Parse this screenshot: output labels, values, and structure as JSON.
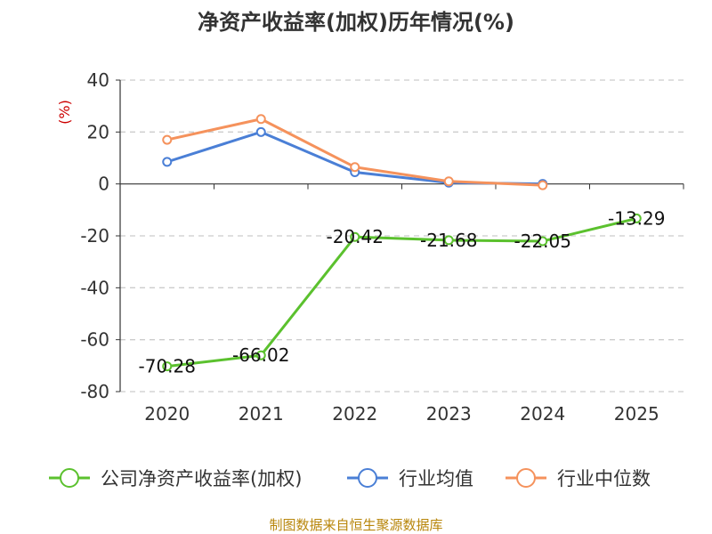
{
  "chart_data": {
    "type": "line",
    "title": "净资产收益率(加权)历年情况(%)",
    "ylabel": "(%)",
    "xlabel": "",
    "categories": [
      "2020",
      "2021",
      "2022",
      "2023",
      "2024",
      "2025"
    ],
    "ylim": [
      -80,
      40
    ],
    "yticks": [
      "40",
      "20",
      "0",
      "-20",
      "-40",
      "-60",
      "-80"
    ],
    "grid": true,
    "legend_position": "bottom",
    "series": [
      {
        "name": "公司净资产收益率(加权)",
        "color": "#5bc12e",
        "values": [
          -70.28,
          -66.02,
          -20.42,
          -21.68,
          -22.05,
          -13.29
        ],
        "labels": [
          "-70.28",
          "-66.02",
          "-20.42",
          "-21.68",
          "-22.05",
          "-13.29"
        ]
      },
      {
        "name": "行业均值",
        "color": "#4a7fd6",
        "values": [
          8.5,
          20,
          4.5,
          0.5,
          0,
          null
        ]
      },
      {
        "name": "行业中位数",
        "color": "#f5925c",
        "values": [
          17,
          25,
          6.5,
          1,
          -0.5,
          null
        ]
      }
    ]
  },
  "source": "制图数据来自恒生聚源数据库"
}
